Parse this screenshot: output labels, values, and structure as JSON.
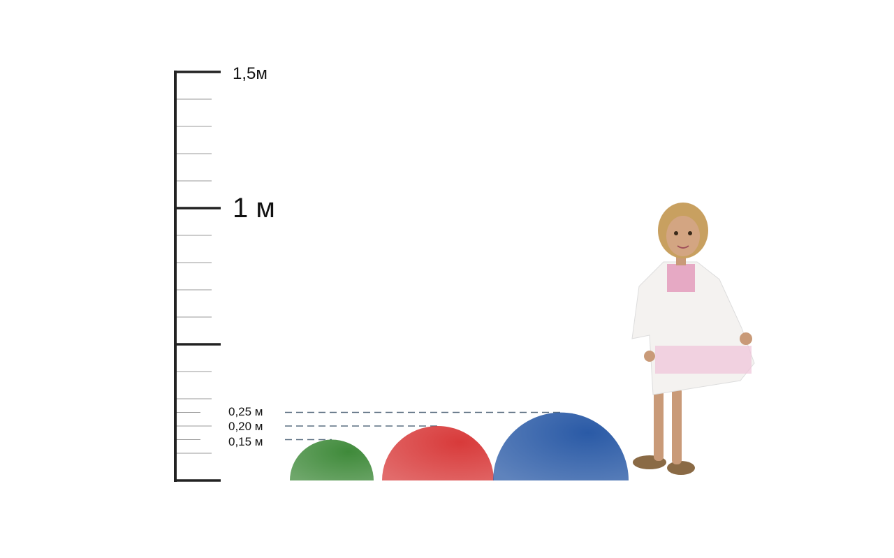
{
  "scale": {
    "labels": [
      {
        "value": 1.5,
        "text": "1,5м"
      },
      {
        "value": 1.0,
        "text": "1 м"
      }
    ],
    "max_m": 1.5,
    "minor_step_m": 0.1
  },
  "heights": [
    {
      "value": 0.25,
      "text": "0,25 м"
    },
    {
      "value": 0.2,
      "text": "0,20 м"
    },
    {
      "value": 0.15,
      "text": "0,15 м"
    }
  ],
  "domes": [
    {
      "name": "green-dome",
      "height_m": 0.15,
      "color": "#3f8a3a"
    },
    {
      "name": "red-dome",
      "height_m": 0.2,
      "color": "#d83a3a"
    },
    {
      "name": "blue-dome",
      "height_m": 0.25,
      "color": "#2a5aa6"
    }
  ]
}
